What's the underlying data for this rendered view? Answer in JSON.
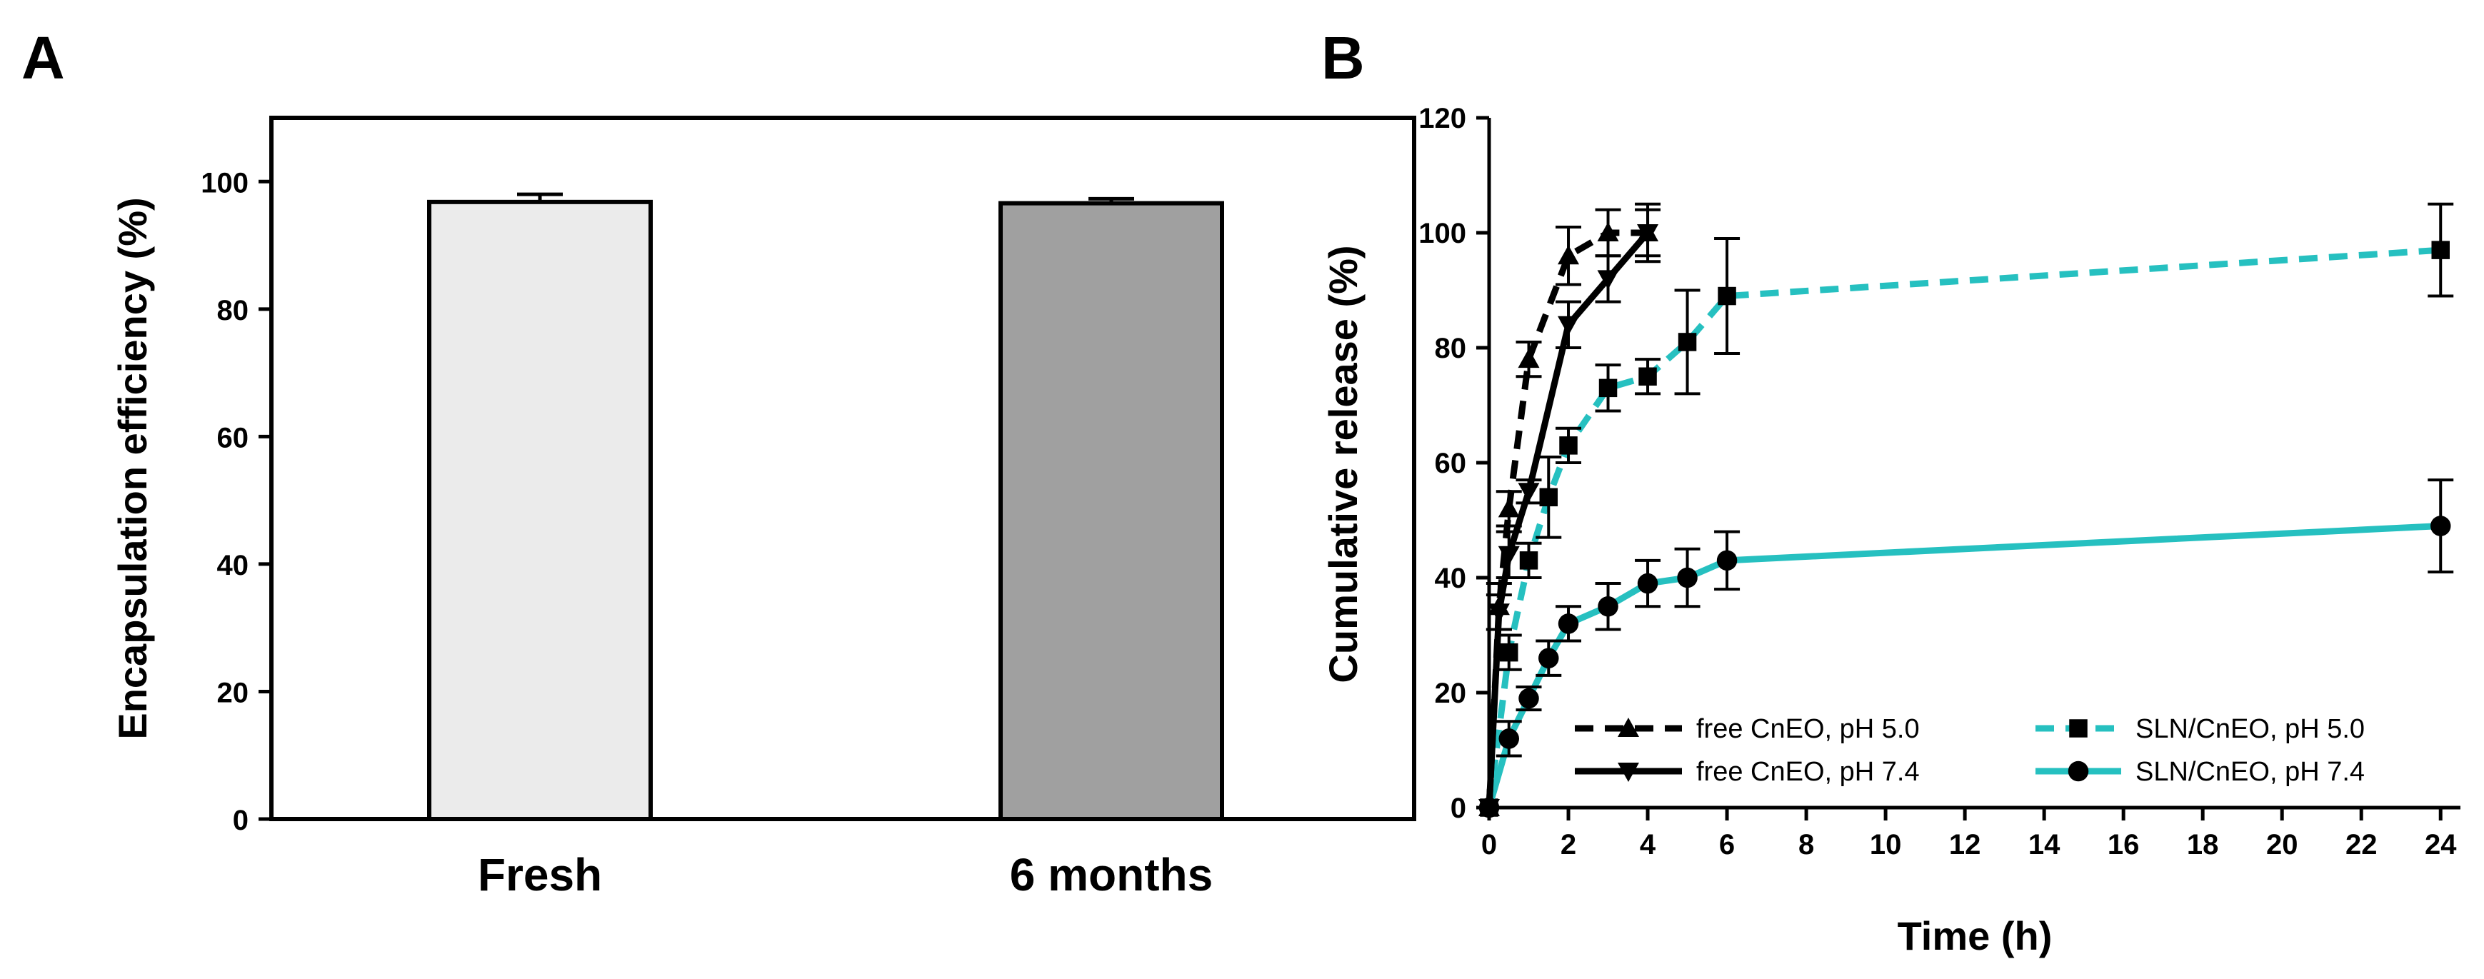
{
  "chart_data": [
    {
      "panel": "A",
      "type": "bar",
      "title": "",
      "xlabel": "",
      "ylabel": "Encapsulation efficiency (%)",
      "ylim": [
        0,
        110
      ],
      "yticks": [
        0,
        20,
        40,
        60,
        80,
        100
      ],
      "categories": [
        "Fresh",
        "6 months"
      ],
      "values": [
        96.8,
        96.6
      ],
      "errors": [
        1.2,
        0.7
      ],
      "bar_colors": [
        "#ebebeb",
        "#a0a0a0"
      ],
      "grid": false
    },
    {
      "panel": "B",
      "type": "line",
      "title": "",
      "xlabel": "Time (h)",
      "ylabel": "Cumulative release (%)",
      "xlim": [
        0,
        24.5
      ],
      "ylim": [
        0,
        120
      ],
      "xticks": [
        0,
        2,
        4,
        6,
        8,
        10,
        12,
        14,
        16,
        18,
        20,
        22,
        24
      ],
      "yticks": [
        0,
        20,
        40,
        60,
        80,
        100,
        120
      ],
      "grid": false,
      "legend_position": "bottom-inside",
      "series": [
        {
          "name": "free CnEO, pH 5.0",
          "color": "#000000",
          "dash": "dashed",
          "marker": "triangle-up",
          "x": [
            0,
            0.25,
            0.5,
            1,
            2,
            3,
            4
          ],
          "y": [
            0,
            35,
            52,
            78,
            96,
            100,
            100
          ],
          "err": [
            0,
            4,
            3,
            3,
            5,
            4,
            4
          ]
        },
        {
          "name": "free CnEO, pH 7.4",
          "color": "#000000",
          "dash": "solid",
          "marker": "triangle-down",
          "x": [
            0,
            0.25,
            0.5,
            1,
            2,
            3,
            4
          ],
          "y": [
            0,
            34,
            44,
            55,
            84,
            92,
            100
          ],
          "err": [
            0,
            3,
            4,
            2,
            4,
            4,
            5
          ]
        },
        {
          "name": "SLN/CnEO, pH 5.0",
          "color": "#26c0c0",
          "dash": "dashed",
          "marker": "square",
          "x": [
            0,
            0.5,
            1,
            1.5,
            2,
            3,
            4,
            5,
            6,
            24
          ],
          "y": [
            0,
            27,
            43,
            54,
            63,
            73,
            75,
            81,
            89,
            97
          ],
          "err": [
            0,
            3,
            3,
            7,
            3,
            4,
            3,
            9,
            10,
            8
          ]
        },
        {
          "name": "SLN/CnEO, pH 7.4",
          "color": "#26c0c0",
          "dash": "solid",
          "marker": "circle",
          "x": [
            0,
            0.5,
            1,
            1.5,
            2,
            3,
            4,
            5,
            6,
            24
          ],
          "y": [
            0,
            12,
            19,
            26,
            32,
            35,
            39,
            40,
            43,
            49
          ],
          "err": [
            0,
            3,
            2,
            3,
            3,
            4,
            4,
            5,
            5,
            8
          ]
        }
      ]
    }
  ]
}
